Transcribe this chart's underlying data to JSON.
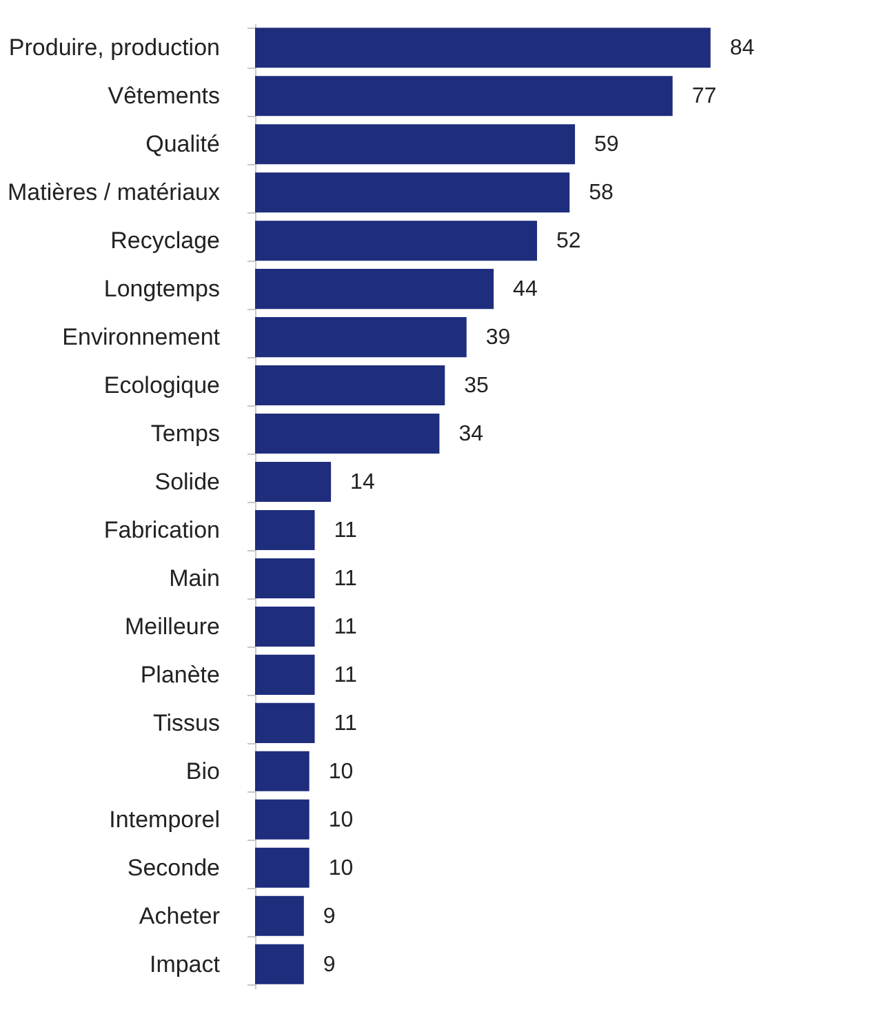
{
  "chart_data": {
    "type": "bar",
    "orientation": "horizontal",
    "data_labels": true,
    "color": "#1f2d7d",
    "categories": [
      "Produire, production",
      "Vêtements",
      "Qualité",
      "Matières / matériaux",
      "Recyclage",
      "Longtemps",
      "Environnement",
      "Ecologique",
      "Temps",
      "Solide",
      "Fabrication",
      "Main",
      "Meilleure",
      "Planète",
      "Tissus",
      "Bio",
      "Intemporel",
      "Seconde",
      "Acheter",
      "Impact"
    ],
    "values": [
      84,
      77,
      59,
      58,
      52,
      44,
      39,
      35,
      34,
      14,
      11,
      11,
      11,
      11,
      11,
      10,
      10,
      10,
      9,
      9
    ]
  }
}
